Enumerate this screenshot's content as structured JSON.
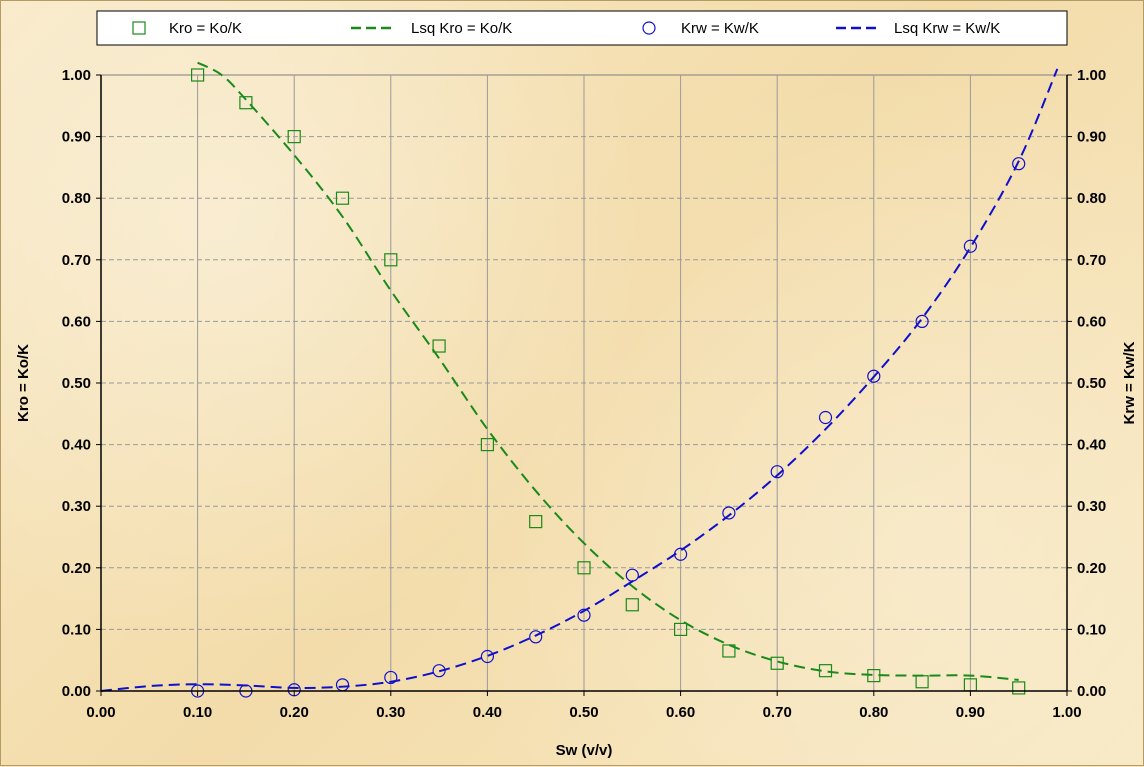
{
  "chart_data": {
    "type": "scatter",
    "xlabel": "Sw (v/v)",
    "ylabel_left": "Kro = Ko/K",
    "ylabel_right": "Krw = Kw/K",
    "xlim": [
      0,
      1
    ],
    "ylim": [
      0,
      1
    ],
    "x_ticks": [
      "0.00",
      "0.10",
      "0.20",
      "0.30",
      "0.40",
      "0.50",
      "0.60",
      "0.70",
      "0.80",
      "0.90",
      "1.00"
    ],
    "y_ticks": [
      "0.00",
      "0.10",
      "0.20",
      "0.30",
      "0.40",
      "0.50",
      "0.60",
      "0.70",
      "0.80",
      "0.90",
      "1.00"
    ],
    "grid": "vertical solid, horizontal dashed",
    "legend_position": "top",
    "colors": {
      "oil": "#1a8a1a",
      "water": "#1010cc"
    },
    "series": [
      {
        "name": "Kro = Ko/K",
        "kind": "markers",
        "marker": "square",
        "color": "#1a8a1a",
        "x": [
          0.1,
          0.15,
          0.2,
          0.25,
          0.3,
          0.35,
          0.4,
          0.45,
          0.5,
          0.55,
          0.6,
          0.65,
          0.7,
          0.75,
          0.8,
          0.85,
          0.9,
          0.95
        ],
        "y": [
          1.0,
          0.955,
          0.9,
          0.8,
          0.7,
          0.56,
          0.4,
          0.275,
          0.2,
          0.14,
          0.1,
          0.065,
          0.045,
          0.033,
          0.025,
          0.015,
          0.01,
          0.005
        ]
      },
      {
        "name": "Lsq Kro = Ko/K",
        "kind": "line",
        "color": "#1a8a1a",
        "x": [
          0.1,
          0.125,
          0.15,
          0.2,
          0.25,
          0.3,
          0.35,
          0.4,
          0.45,
          0.5,
          0.55,
          0.6,
          0.65,
          0.7,
          0.75,
          0.8,
          0.85,
          0.9,
          0.95
        ],
        "y": [
          1.02,
          1.0,
          0.96,
          0.87,
          0.77,
          0.65,
          0.54,
          0.425,
          0.325,
          0.24,
          0.17,
          0.115,
          0.075,
          0.048,
          0.032,
          0.026,
          0.025,
          0.025,
          0.018
        ]
      },
      {
        "name": "Krw = Kw/K",
        "kind": "markers",
        "marker": "circle",
        "color": "#1010cc",
        "x": [
          0.1,
          0.15,
          0.2,
          0.25,
          0.3,
          0.35,
          0.4,
          0.45,
          0.5,
          0.55,
          0.6,
          0.65,
          0.7,
          0.75,
          0.8,
          0.85,
          0.9,
          0.95
        ],
        "y": [
          0.0,
          0.0,
          0.002,
          0.01,
          0.022,
          0.033,
          0.056,
          0.088,
          0.123,
          0.188,
          0.222,
          0.289,
          0.356,
          0.444,
          0.511,
          0.6,
          0.722,
          0.856
        ]
      },
      {
        "name": "Lsq Krw = Kw/K",
        "kind": "line",
        "color": "#1010cc",
        "x": [
          0.0,
          0.05,
          0.1,
          0.15,
          0.2,
          0.25,
          0.3,
          0.35,
          0.4,
          0.45,
          0.5,
          0.55,
          0.6,
          0.65,
          0.7,
          0.75,
          0.8,
          0.85,
          0.9,
          0.95,
          0.99
        ],
        "y": [
          0.0,
          0.008,
          0.011,
          0.009,
          0.005,
          0.007,
          0.015,
          0.032,
          0.057,
          0.09,
          0.13,
          0.178,
          0.228,
          0.285,
          0.35,
          0.425,
          0.51,
          0.605,
          0.72,
          0.86,
          1.01
        ]
      }
    ]
  }
}
